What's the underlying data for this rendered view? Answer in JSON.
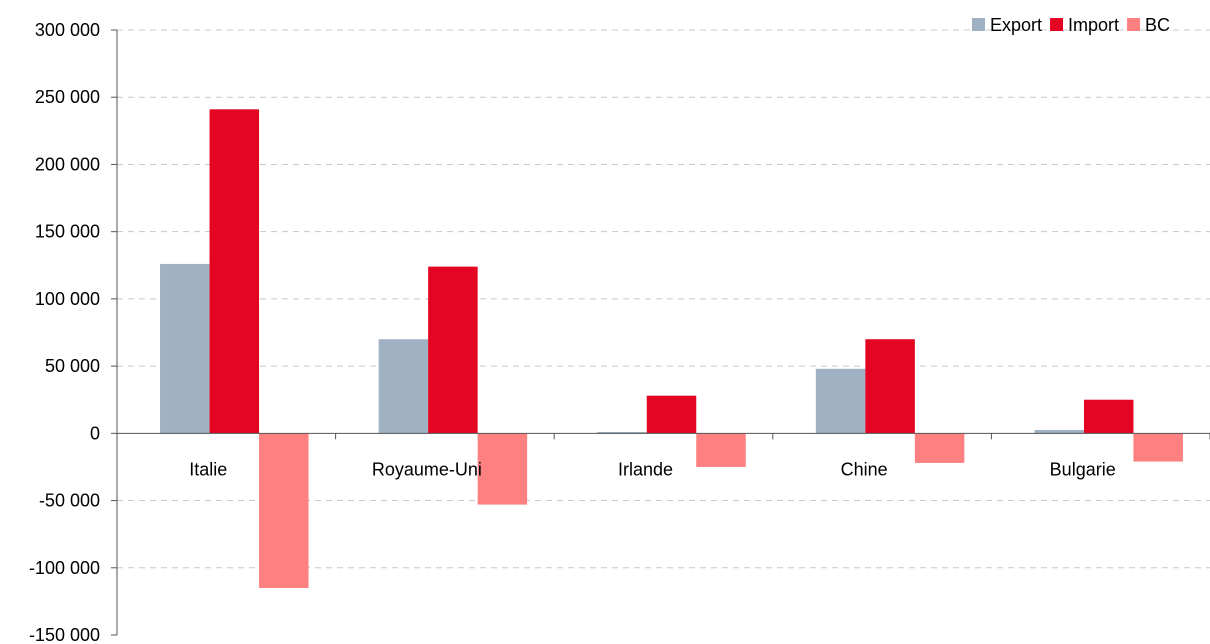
{
  "chart_data": {
    "type": "bar",
    "title": "",
    "xlabel": "",
    "ylabel": "",
    "categories": [
      "Italie",
      "Royaume-Uni",
      "Irlande",
      "Chine",
      "Bulgarie"
    ],
    "series": [
      {
        "name": "Export",
        "color": "#9fb1c2",
        "values": [
          126000,
          70000,
          1000,
          48000,
          2500
        ]
      },
      {
        "name": "Import",
        "color": "#e30521",
        "values": [
          241000,
          124000,
          28000,
          70000,
          25000
        ]
      },
      {
        "name": "BC",
        "color": "#ff8080",
        "values": [
          -115000,
          -53000,
          -25000,
          -22000,
          -21000
        ]
      }
    ],
    "ylim": [
      -150000,
      300000
    ],
    "yticks": [
      {
        "value": 300000,
        "label": "300 000"
      },
      {
        "value": 250000,
        "label": "250 000"
      },
      {
        "value": 200000,
        "label": "200 000"
      },
      {
        "value": 150000,
        "label": "150 000"
      },
      {
        "value": 100000,
        "label": "100 000"
      },
      {
        "value": 50000,
        "label": "50 000"
      },
      {
        "value": 0,
        "label": "0"
      },
      {
        "value": -50000,
        "label": "-50 000"
      },
      {
        "value": -100000,
        "label": "-100 000"
      },
      {
        "value": -150000,
        "label": "-150 000"
      }
    ],
    "grid": "horizontal dashed",
    "legend_position": "top-right"
  }
}
